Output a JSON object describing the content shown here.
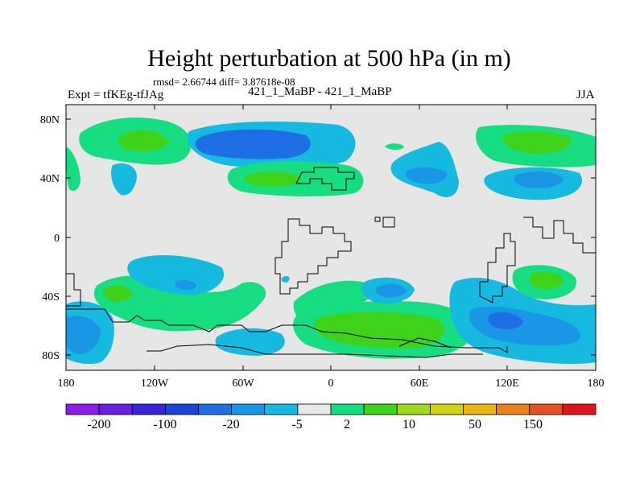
{
  "title": "Height perturbation at 500 hPa (in m)",
  "stats": "rmsd= 2.66744 diff= 3.87618e-08",
  "left_label": "Expt = tfKEg-tfJAg",
  "center_label": "421_1_MaBP - 421_1_MaBP",
  "right_label": "JJA",
  "colors": {
    "background_field": "#e6e6e6",
    "palette": [
      "#8a1ee6",
      "#6a1ee0",
      "#3a22d8",
      "#1c44d8",
      "#1e6ee6",
      "#1a96e6",
      "#16b9e0",
      "#e8e8e8",
      "#16dc82",
      "#3ed21a",
      "#a0d81c",
      "#d2d214",
      "#e6b414",
      "#e6821a",
      "#e6501e",
      "#e0141e"
    ]
  },
  "map": {
    "y_ticks": [
      "80N",
      "40N",
      "0",
      "40S",
      "80S"
    ],
    "x_ticks": [
      "180",
      "120W",
      "60W",
      "0",
      "60E",
      "120E",
      "180"
    ]
  },
  "colorbar": {
    "labels": [
      "-200",
      "-100",
      "-20",
      "-5",
      "2",
      "10",
      "50",
      "150"
    ]
  },
  "chart_data": {
    "type": "heatmap",
    "title": "Height perturbation at 500 hPa (in m)",
    "variable": "500 hPa height perturbation",
    "units": "m",
    "season": "JJA",
    "xlim": [
      -180,
      180
    ],
    "ylim": [
      -90,
      90
    ],
    "contour_levels": [
      -200,
      -150,
      -100,
      -50,
      -20,
      -10,
      -5,
      -2,
      2,
      5,
      10,
      20,
      50,
      100,
      150,
      200
    ],
    "features": [
      {
        "lon": -120,
        "lat": 63,
        "level": 10
      },
      {
        "lon": -45,
        "lat": 63,
        "level": -10
      },
      {
        "lon": -10,
        "lat": 40,
        "level": 5
      },
      {
        "lon": 120,
        "lat": 62,
        "level": 10
      },
      {
        "lon": 140,
        "lat": 43,
        "level": -5
      },
      {
        "lon": 63,
        "lat": 43,
        "level": -5
      },
      {
        "lon": -145,
        "lat": 43,
        "level": -5
      },
      {
        "lon": 80,
        "lat": 55,
        "level": -5
      },
      {
        "lon": -100,
        "lat": -33,
        "level": -5
      },
      {
        "lon": -140,
        "lat": -38,
        "level": 10
      },
      {
        "lon": -35,
        "lat": -40,
        "level": 5
      },
      {
        "lon": 40,
        "lat": -38,
        "level": -5
      },
      {
        "lon": 145,
        "lat": -30,
        "level": 10
      },
      {
        "lon": 60,
        "lat": -62,
        "level": 10
      },
      {
        "lon": 120,
        "lat": -60,
        "level": -10
      },
      {
        "lon": -170,
        "lat": -62,
        "level": -10
      },
      {
        "lon": -60,
        "lat": -70,
        "level": -5
      }
    ]
  }
}
